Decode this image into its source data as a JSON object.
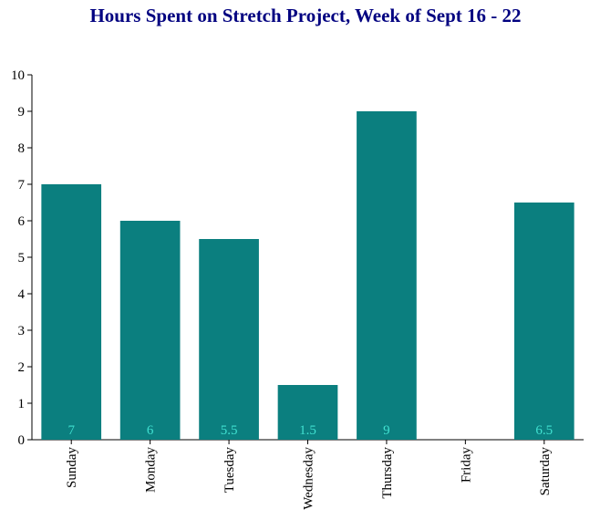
{
  "chart_data": {
    "type": "bar",
    "title": "Hours Spent on Stretch Project, Week of Sept 16 - 22",
    "xlabel": "",
    "ylabel": "",
    "categories": [
      "Sunday",
      "Monday",
      "Tuesday",
      "Wednesday",
      "Thursday",
      "Friday",
      "Saturday"
    ],
    "values": [
      7,
      6,
      5.5,
      1.5,
      9,
      0,
      6.5
    ],
    "data_labels": [
      "7",
      "6",
      "5.5",
      "1.5",
      "9",
      "",
      "6.5"
    ],
    "ylim": [
      0,
      10
    ],
    "yticks": [
      "0",
      "1",
      "2",
      "3",
      "4",
      "5",
      "6",
      "7",
      "8",
      "9",
      "10"
    ],
    "grid": false,
    "legend": "none",
    "colors": {
      "bar": "#0b7f7f",
      "data_label": "#40e0d0",
      "title": "#000080",
      "axis": "#000000"
    }
  }
}
